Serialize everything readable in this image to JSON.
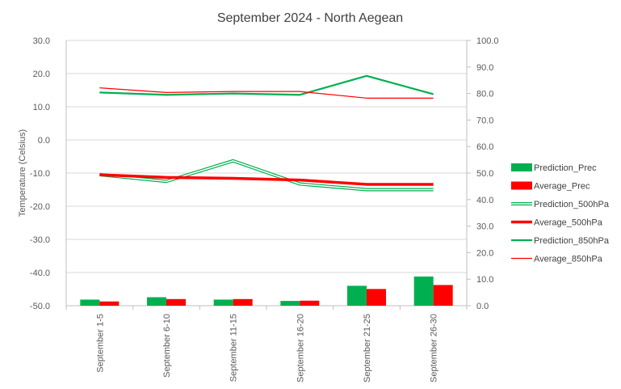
{
  "chart_data": {
    "type": "combo",
    "title": "September 2024 - North Aegean",
    "ylabel": "Temperature (Celsius)",
    "y2label": "",
    "ylim": [
      -50,
      30
    ],
    "y2lim": [
      0,
      100
    ],
    "yticks": [
      "30.0",
      "20.0",
      "10.0",
      "0.0",
      "-10.0",
      "-20.0",
      "-30.0",
      "-40.0",
      "-50.0"
    ],
    "y2ticks": [
      "100.0",
      "90.0",
      "80.0",
      "70.0",
      "60.0",
      "50.0",
      "40.0",
      "30.0",
      "20.0",
      "10.0",
      "0.0"
    ],
    "categories": [
      "September 1-5",
      "September 6-10",
      "September 11-15",
      "September 16-20",
      "September 21-25",
      "September 26-30"
    ],
    "legend_position": "right",
    "series": [
      {
        "name": "Prediction_Prec",
        "kind": "bar",
        "axis": "secondary",
        "color": "#00b050",
        "values": [
          2.3,
          3.2,
          2.3,
          1.8,
          7.5,
          11.0
        ]
      },
      {
        "name": "Average_Prec",
        "kind": "bar",
        "axis": "secondary",
        "color": "#ff0000",
        "values": [
          1.6,
          2.5,
          2.5,
          1.9,
          6.3,
          7.8
        ]
      },
      {
        "name": "Prediction_500hPa",
        "kind": "line",
        "style": "double",
        "axis": "primary",
        "color": "#00b050",
        "values": [
          -10.5,
          -12.5,
          -6.3,
          -13.3,
          -15.0,
          -15.0
        ]
      },
      {
        "name": "Average_500hPa",
        "kind": "line",
        "style": "thick",
        "axis": "primary",
        "color": "#ff0000",
        "values": [
          -10.5,
          -11.3,
          -11.6,
          -12.1,
          -13.4,
          -13.4
        ]
      },
      {
        "name": "Prediction_850hPa",
        "kind": "line",
        "style": "medium",
        "axis": "primary",
        "color": "#00b050",
        "values": [
          14.3,
          13.6,
          14.0,
          13.6,
          19.3,
          13.8
        ]
      },
      {
        "name": "Average_850hPa",
        "kind": "line",
        "style": "thin",
        "axis": "primary",
        "color": "#ff0000",
        "values": [
          15.7,
          14.3,
          14.6,
          14.6,
          12.6,
          12.6
        ]
      }
    ]
  }
}
